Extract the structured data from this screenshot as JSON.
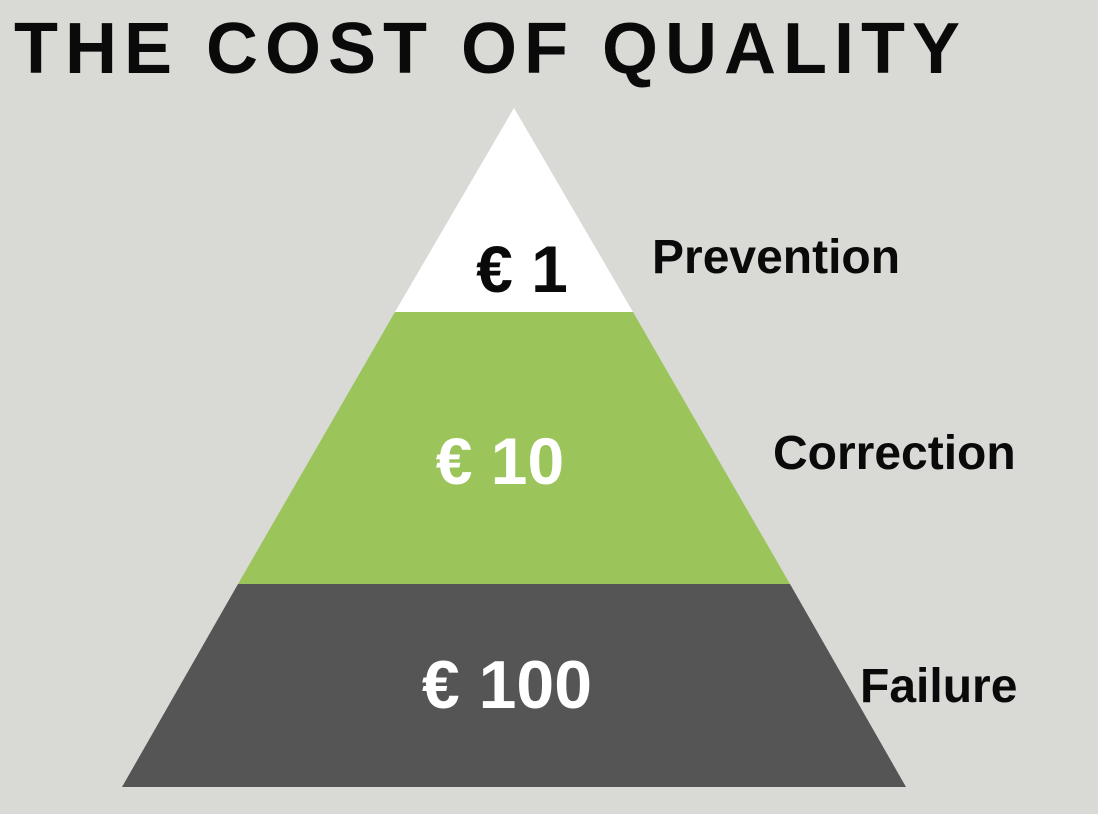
{
  "title": "THE COST OF QUALITY",
  "colors": {
    "background": "#d9dad6",
    "prevention_fill": "#ffffff",
    "correction_fill": "#9bc45a",
    "failure_fill": "#555555",
    "dark_text": "#0a0a0a",
    "light_text": "#ffffff"
  },
  "tiers": [
    {
      "cost": "€ 1",
      "label": "Prevention"
    },
    {
      "cost": "€ 10",
      "label": "Correction"
    },
    {
      "cost": "€ 100",
      "label": "Failure"
    }
  ]
}
